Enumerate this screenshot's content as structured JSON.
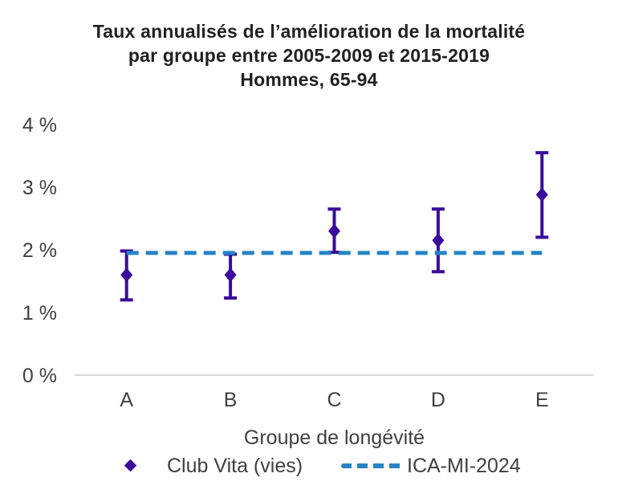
{
  "chart_data": {
    "type": "scatter",
    "title_lines": [
      "Taux annualisés de l’amélioration de la mortalité",
      "par groupe entre 2005-2009 et 2015-2019",
      "Hommes, 65-94"
    ],
    "categories": [
      "A",
      "B",
      "C",
      "D",
      "E"
    ],
    "series": [
      {
        "name": "Club Vita (vies)",
        "type": "scatter-errorbar",
        "marker": "diamond",
        "color": "#3B0A9B",
        "values": [
          1.6,
          1.6,
          2.3,
          2.15,
          2.88
        ],
        "ci_low": [
          1.2,
          1.23,
          1.96,
          1.65,
          2.2
        ],
        "ci_high": [
          1.98,
          1.93,
          2.65,
          2.65,
          3.55
        ]
      },
      {
        "name": "ICA-MI-2024",
        "type": "reference-line",
        "style": "dashed",
        "color": "#2584C4",
        "value": 1.95
      }
    ],
    "xlabel": "Groupe de longévité",
    "ylabel": "",
    "ylim": [
      0,
      4
    ],
    "ytick_labels": [
      "0 %",
      "1 %",
      "2 %",
      "3 %",
      "4 %"
    ],
    "grid": false,
    "legend_position": "bottom",
    "colors": {
      "marker_purple": "#3B0A9B",
      "line_blue": "#2584C4",
      "axis_line_gray": "#D9D9D9",
      "label_gray": "#404040",
      "title_color": "#212121",
      "background": "#FFFFFF"
    }
  }
}
